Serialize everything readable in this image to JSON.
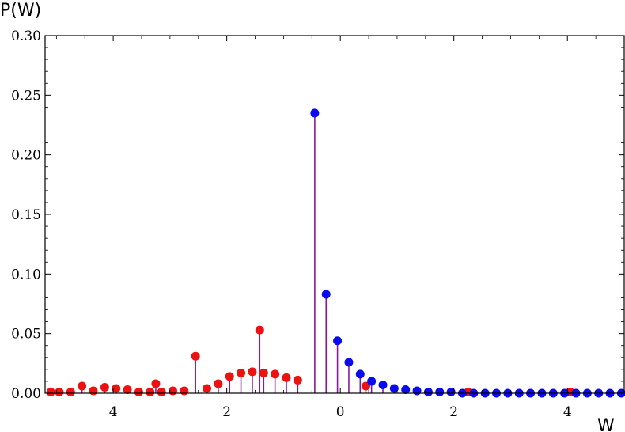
{
  "chart_data": {
    "type": "scatter",
    "ylabel": "P(W)",
    "xlabel": "W",
    "xlim": [
      -5.2,
      5.0
    ],
    "ylim": [
      0,
      0.3
    ],
    "x_tick_values": [
      -4,
      -2,
      0,
      2,
      4
    ],
    "x_tick_labels": [
      "4",
      "2",
      "0",
      "2",
      "4"
    ],
    "y_ticks": [
      0.0,
      0.05,
      0.1,
      0.15,
      0.2,
      0.25,
      0.3
    ],
    "y_tick_labels": [
      "0.00",
      "0.05",
      "0.10",
      "0.15",
      "0.20",
      "0.25",
      "0.30"
    ],
    "grid": false,
    "colors": {
      "red": "#ee1111",
      "blue": "#0a0aee",
      "stem": "#8b1a9a",
      "frame": "#000000"
    },
    "series": [
      {
        "color": "red",
        "points": [
          [
            -5.1,
            0.001
          ],
          [
            -4.95,
            0.001
          ],
          [
            -4.75,
            0.001
          ],
          [
            -4.55,
            0.006
          ],
          [
            -4.35,
            0.002
          ],
          [
            -4.15,
            0.005
          ],
          [
            -3.95,
            0.004
          ],
          [
            -3.75,
            0.003
          ],
          [
            -3.55,
            0.001
          ],
          [
            -3.35,
            0.001
          ],
          [
            -3.25,
            0.008
          ],
          [
            -3.15,
            0.001
          ],
          [
            -2.95,
            0.002
          ],
          [
            -2.75,
            0.002
          ],
          [
            -2.55,
            0.031
          ],
          [
            -2.35,
            0.004
          ],
          [
            -2.15,
            0.008
          ],
          [
            -1.95,
            0.014
          ],
          [
            -1.75,
            0.017
          ],
          [
            -1.55,
            0.018
          ],
          [
            -1.42,
            0.053
          ],
          [
            -1.35,
            0.017
          ],
          [
            -1.15,
            0.016
          ],
          [
            -0.95,
            0.013
          ],
          [
            -0.75,
            0.011
          ],
          [
            0.45,
            0.006
          ],
          [
            2.25,
            0.001
          ],
          [
            4.05,
            0.001
          ]
        ]
      },
      {
        "color": "blue",
        "points": [
          [
            -0.45,
            0.235
          ],
          [
            -0.25,
            0.083
          ],
          [
            -0.05,
            0.044
          ],
          [
            0.15,
            0.026
          ],
          [
            0.35,
            0.016
          ],
          [
            0.55,
            0.01
          ],
          [
            0.75,
            0.007
          ],
          [
            0.95,
            0.004
          ],
          [
            1.15,
            0.003
          ],
          [
            1.35,
            0.002
          ],
          [
            1.55,
            0.001
          ],
          [
            1.75,
            0.001
          ],
          [
            1.95,
            0.001
          ],
          [
            2.15,
            0.0
          ],
          [
            2.35,
            0.0
          ],
          [
            2.55,
            0.0
          ],
          [
            2.75,
            0.0
          ],
          [
            2.95,
            0.0
          ],
          [
            3.15,
            0.0
          ],
          [
            3.35,
            0.0
          ],
          [
            3.55,
            0.0
          ],
          [
            3.75,
            0.0
          ],
          [
            3.95,
            0.0
          ],
          [
            4.15,
            0.0
          ],
          [
            4.35,
            0.0
          ],
          [
            4.55,
            0.0
          ],
          [
            4.75,
            0.0
          ],
          [
            4.95,
            0.0
          ]
        ]
      }
    ]
  }
}
